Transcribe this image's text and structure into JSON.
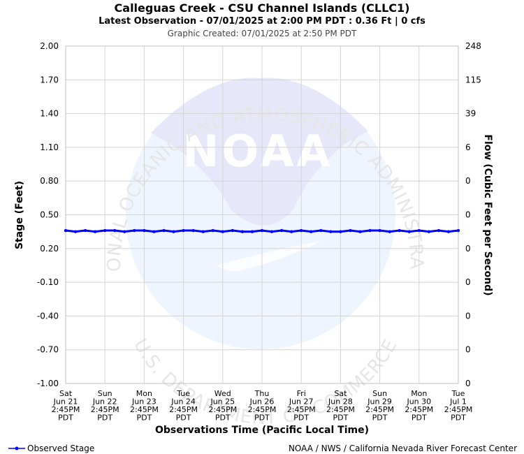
{
  "chart_data": {
    "type": "line",
    "title": "Calleguas Creek - CSU Channel Islands (CLLC1)",
    "subtitle": "Latest Observation - 07/01/2025 at 2:00 PM PDT : 0.36 Ft | 0 cfs",
    "created": "Graphic Created: 07/01/2025 at 2:50 PM PDT",
    "xlabel": "Observations Time (Pacific Local Time)",
    "ylabel": "Stage (Feet)",
    "y2label": "Flow (Cubic Feet per Second)",
    "ylim": [
      -1.0,
      2.0
    ],
    "yticks": [
      "2.00",
      "1.70",
      "1.40",
      "1.10",
      "0.80",
      "0.50",
      "0.20",
      "-0.10",
      "-0.40",
      "-0.70",
      "-1.00"
    ],
    "y2ticks": [
      "248",
      "115",
      "39",
      "6",
      "0",
      "0",
      "0",
      "0",
      "0",
      "0",
      "0"
    ],
    "xticks": [
      [
        "Sat",
        "Jun 21",
        "2:45PM",
        "PDT"
      ],
      [
        "Sun",
        "Jun 22",
        "2:45PM",
        "PDT"
      ],
      [
        "Mon",
        "Jun 23",
        "2:45PM",
        "PDT"
      ],
      [
        "Tue",
        "Jun 24",
        "2:45PM",
        "PDT"
      ],
      [
        "Wed",
        "Jun 25",
        "2:45PM",
        "PDT"
      ],
      [
        "Thu",
        "Jun 26",
        "2:45PM",
        "PDT"
      ],
      [
        "Fri",
        "Jun 27",
        "2:45PM",
        "PDT"
      ],
      [
        "Sat",
        "Jun 28",
        "2:45PM",
        "PDT"
      ],
      [
        "Sun",
        "Jun 29",
        "2:45PM",
        "PDT"
      ],
      [
        "Mon",
        "Jun 30",
        "2:45PM",
        "PDT"
      ],
      [
        "Tue",
        "Jul 1",
        "2:45PM",
        "PDT"
      ]
    ],
    "grid": true,
    "series": [
      {
        "name": "Observed Stage",
        "color": "#0000ff",
        "x": [
          0,
          0.25,
          0.5,
          0.75,
          1,
          1.25,
          1.5,
          1.75,
          2,
          2.25,
          2.5,
          2.75,
          3,
          3.25,
          3.5,
          3.75,
          4,
          4.25,
          4.5,
          4.75,
          5,
          5.25,
          5.5,
          5.75,
          6,
          6.25,
          6.5,
          6.75,
          7,
          7.25,
          7.5,
          7.75,
          8,
          8.25,
          8.5,
          8.75,
          9,
          9.25,
          9.5,
          9.75,
          10
        ],
        "values": [
          0.36,
          0.35,
          0.36,
          0.35,
          0.36,
          0.36,
          0.35,
          0.36,
          0.36,
          0.35,
          0.36,
          0.35,
          0.36,
          0.36,
          0.35,
          0.36,
          0.35,
          0.36,
          0.35,
          0.35,
          0.36,
          0.35,
          0.36,
          0.35,
          0.36,
          0.35,
          0.36,
          0.35,
          0.35,
          0.36,
          0.35,
          0.36,
          0.36,
          0.35,
          0.36,
          0.35,
          0.36,
          0.35,
          0.36,
          0.35,
          0.36
        ]
      }
    ],
    "legend": "bottom-left"
  },
  "watermark": {
    "agency": "NOAA",
    "arc_top": "NATIONAL OCEANIC AND ATMOSPHERIC ADMINISTRATION",
    "arc_bottom": "U.S. DEPARTMENT OF COMMERCE"
  },
  "footer": {
    "credit": "NOAA / NWS / California Nevada River Forecast Center"
  }
}
